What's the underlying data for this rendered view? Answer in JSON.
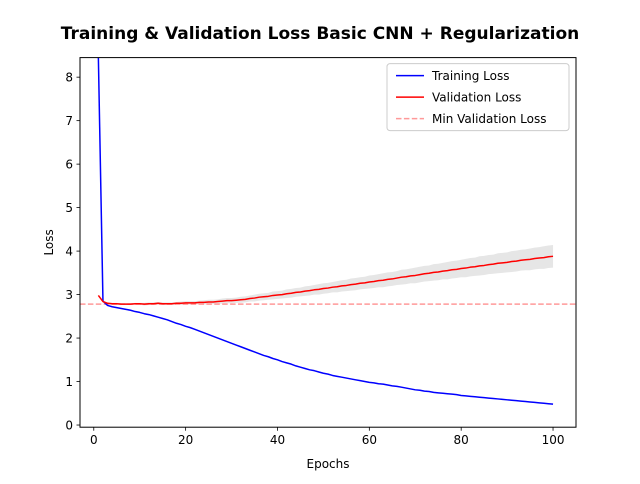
{
  "chart_data": {
    "type": "line",
    "title": "Training & Validation Loss Basic CNN + Regularization",
    "xlabel": "Epochs",
    "ylabel": "Loss",
    "xlim": [
      -3,
      105
    ],
    "ylim": [
      -0.05,
      8.45
    ],
    "x_ticks": [
      0,
      20,
      40,
      60,
      80,
      100
    ],
    "y_ticks": [
      0,
      1,
      2,
      3,
      4,
      5,
      6,
      7,
      8
    ],
    "grid": false,
    "legend_position": "upper-right",
    "x": [
      1,
      2,
      3,
      4,
      5,
      6,
      7,
      8,
      9,
      10,
      11,
      12,
      13,
      14,
      15,
      16,
      17,
      18,
      19,
      20,
      21,
      22,
      23,
      24,
      25,
      26,
      27,
      28,
      29,
      30,
      31,
      32,
      33,
      34,
      35,
      36,
      37,
      38,
      39,
      40,
      41,
      42,
      43,
      44,
      45,
      46,
      47,
      48,
      49,
      50,
      51,
      52,
      53,
      54,
      55,
      56,
      57,
      58,
      59,
      60,
      61,
      62,
      63,
      64,
      65,
      66,
      67,
      68,
      69,
      70,
      71,
      72,
      73,
      74,
      75,
      76,
      77,
      78,
      79,
      80,
      81,
      82,
      83,
      84,
      85,
      86,
      87,
      88,
      89,
      90,
      91,
      92,
      93,
      94,
      95,
      96,
      97,
      98,
      99,
      100
    ],
    "series": [
      {
        "name": "Training Loss",
        "color": "#0000ff",
        "values": [
          8.45,
          2.85,
          2.75,
          2.72,
          2.7,
          2.68,
          2.66,
          2.64,
          2.61,
          2.59,
          2.56,
          2.54,
          2.51,
          2.48,
          2.45,
          2.42,
          2.38,
          2.34,
          2.31,
          2.27,
          2.24,
          2.2,
          2.16,
          2.12,
          2.08,
          2.04,
          2.0,
          1.96,
          1.92,
          1.88,
          1.84,
          1.8,
          1.76,
          1.72,
          1.68,
          1.64,
          1.6,
          1.57,
          1.53,
          1.5,
          1.46,
          1.43,
          1.4,
          1.36,
          1.33,
          1.3,
          1.27,
          1.25,
          1.22,
          1.19,
          1.17,
          1.14,
          1.12,
          1.1,
          1.08,
          1.06,
          1.04,
          1.02,
          1.0,
          0.98,
          0.97,
          0.95,
          0.94,
          0.92,
          0.9,
          0.89,
          0.87,
          0.85,
          0.83,
          0.81,
          0.8,
          0.78,
          0.77,
          0.75,
          0.74,
          0.73,
          0.72,
          0.71,
          0.7,
          0.68,
          0.67,
          0.66,
          0.65,
          0.64,
          0.63,
          0.62,
          0.61,
          0.6,
          0.59,
          0.58,
          0.57,
          0.56,
          0.55,
          0.54,
          0.53,
          0.52,
          0.51,
          0.5,
          0.49,
          0.48
        ]
      },
      {
        "name": "Validation Loss",
        "color": "#ff0000",
        "band_color": "#e6e6e6",
        "values": [
          2.98,
          2.84,
          2.8,
          2.79,
          2.79,
          2.78,
          2.78,
          2.78,
          2.79,
          2.79,
          2.78,
          2.79,
          2.79,
          2.8,
          2.79,
          2.79,
          2.79,
          2.8,
          2.8,
          2.81,
          2.81,
          2.81,
          2.82,
          2.82,
          2.83,
          2.83,
          2.84,
          2.85,
          2.86,
          2.86,
          2.87,
          2.88,
          2.89,
          2.91,
          2.92,
          2.94,
          2.95,
          2.96,
          2.98,
          2.99,
          3.0,
          3.02,
          3.03,
          3.05,
          3.06,
          3.08,
          3.09,
          3.11,
          3.12,
          3.14,
          3.15,
          3.17,
          3.18,
          3.2,
          3.21,
          3.23,
          3.24,
          3.26,
          3.27,
          3.29,
          3.3,
          3.32,
          3.33,
          3.35,
          3.36,
          3.38,
          3.4,
          3.41,
          3.43,
          3.44,
          3.46,
          3.48,
          3.49,
          3.51,
          3.52,
          3.54,
          3.55,
          3.57,
          3.58,
          3.6,
          3.61,
          3.63,
          3.64,
          3.66,
          3.67,
          3.69,
          3.7,
          3.72,
          3.73,
          3.74,
          3.76,
          3.77,
          3.79,
          3.8,
          3.81,
          3.83,
          3.84,
          3.85,
          3.87,
          3.88
        ],
        "band_halfwidth": [
          0.02,
          0.02,
          0.02,
          0.02,
          0.02,
          0.02,
          0.02,
          0.02,
          0.02,
          0.02,
          0.03,
          0.03,
          0.03,
          0.03,
          0.03,
          0.03,
          0.03,
          0.03,
          0.04,
          0.04,
          0.04,
          0.04,
          0.04,
          0.05,
          0.05,
          0.05,
          0.05,
          0.06,
          0.06,
          0.06,
          0.06,
          0.07,
          0.07,
          0.07,
          0.08,
          0.08,
          0.08,
          0.08,
          0.09,
          0.09,
          0.09,
          0.1,
          0.1,
          0.1,
          0.1,
          0.11,
          0.11,
          0.11,
          0.12,
          0.12,
          0.12,
          0.12,
          0.13,
          0.13,
          0.13,
          0.14,
          0.14,
          0.14,
          0.14,
          0.15,
          0.15,
          0.15,
          0.16,
          0.16,
          0.16,
          0.16,
          0.17,
          0.17,
          0.17,
          0.18,
          0.18,
          0.18,
          0.18,
          0.19,
          0.19,
          0.19,
          0.2,
          0.2,
          0.2,
          0.2,
          0.21,
          0.21,
          0.21,
          0.22,
          0.22,
          0.22,
          0.22,
          0.23,
          0.23,
          0.23,
          0.24,
          0.24,
          0.24,
          0.24,
          0.25,
          0.25,
          0.25,
          0.26,
          0.26,
          0.26
        ]
      }
    ],
    "hlines": [
      {
        "name": "Min Validation Loss",
        "y": 2.78,
        "color": "#ff9999",
        "style": "dashed"
      }
    ]
  }
}
